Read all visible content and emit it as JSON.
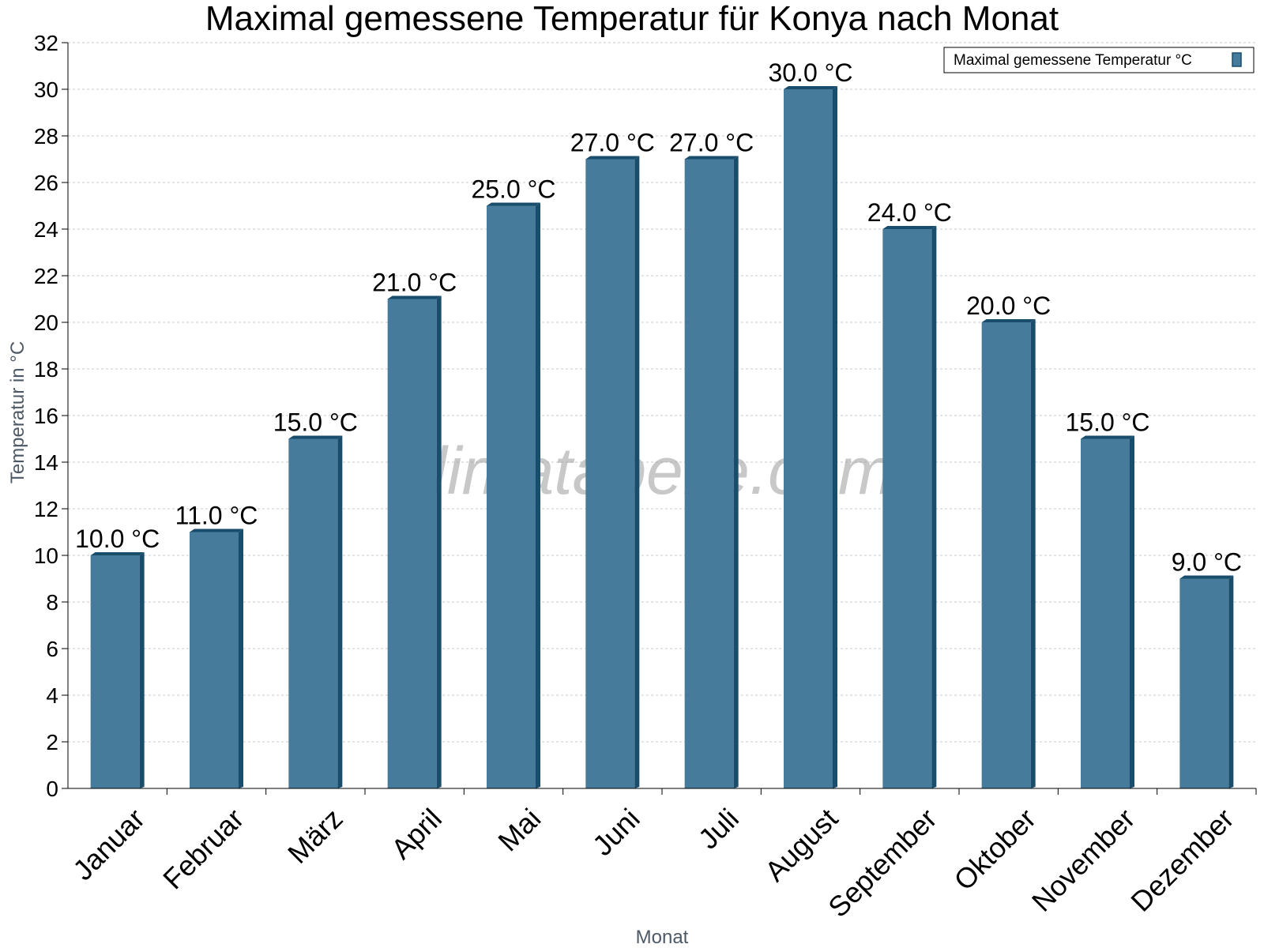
{
  "chart_data": {
    "type": "bar",
    "title": "Maximal gemessene Temperatur für Konya nach Monat",
    "xlabel": "Monat",
    "ylabel": "Temperatur in °C",
    "ylim": [
      0,
      32
    ],
    "ytick_step": 2,
    "grid": true,
    "legend_position": "top-right",
    "categories": [
      "Januar",
      "Februar",
      "März",
      "April",
      "Mai",
      "Juni",
      "Juli",
      "August",
      "September",
      "Oktober",
      "November",
      "Dezember"
    ],
    "series": [
      {
        "name": "Maximal gemessene Temperatur °C",
        "values": [
          10.0,
          11.0,
          15.0,
          21.0,
          25.0,
          27.0,
          27.0,
          30.0,
          24.0,
          20.0,
          15.0,
          9.0
        ],
        "value_labels": [
          "10.0 °C",
          "11.0 °C",
          "15.0 °C",
          "21.0 °C",
          "25.0 °C",
          "27.0 °C",
          "27.0 °C",
          "30.0 °C",
          "24.0 °C",
          "20.0 °C",
          "15.0 °C",
          "9.0 °C"
        ]
      }
    ],
    "colors": {
      "bar_face": "#467b9c",
      "bar_side": "#1a4d6c",
      "bar_top": "#1a4d6c"
    },
    "watermark": "klimatabelle.com"
  }
}
